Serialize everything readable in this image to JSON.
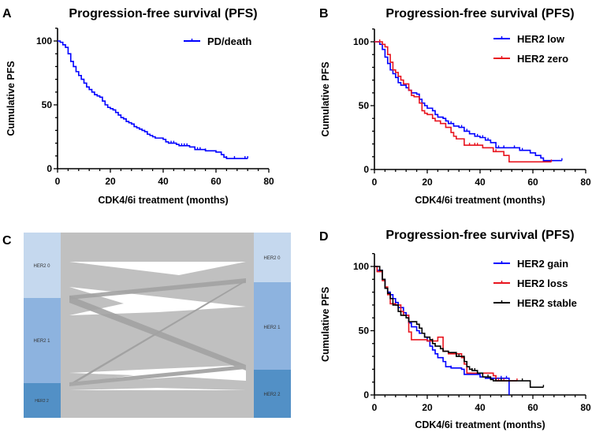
{
  "chart_data": [
    {
      "panel": "A",
      "type": "line",
      "subtype": "kaplan-meier step",
      "title": "Progression-free survival (PFS)",
      "xlabel": "CDK4/6i treatment (months)",
      "ylabel": "Cumulative PFS",
      "xlim": [
        0,
        80
      ],
      "ylim": [
        0,
        110
      ],
      "xticks": [
        "0",
        "20",
        "40",
        "60",
        "80"
      ],
      "yticks": [
        "0",
        "50",
        "100"
      ],
      "legend_position": "top-right",
      "series": [
        {
          "name": "PD/death",
          "color": "#0000ff",
          "steps": [
            [
              0,
              100
            ],
            [
              1,
              99
            ],
            [
              2,
              97
            ],
            [
              3,
              95
            ],
            [
              4,
              90
            ],
            [
              5,
              84
            ],
            [
              6,
              80
            ],
            [
              7,
              76
            ],
            [
              8,
              73
            ],
            [
              9,
              70
            ],
            [
              10,
              67
            ],
            [
              11,
              64
            ],
            [
              12,
              62
            ],
            [
              13,
              60
            ],
            [
              14,
              58
            ],
            [
              15,
              57
            ],
            [
              16,
              56
            ],
            [
              17,
              53
            ],
            [
              18,
              50
            ],
            [
              19,
              48
            ],
            [
              20,
              47
            ],
            [
              21,
              46
            ],
            [
              22,
              44
            ],
            [
              23,
              42
            ],
            [
              24,
              40
            ],
            [
              25,
              39
            ],
            [
              26,
              37
            ],
            [
              27,
              36
            ],
            [
              28,
              35
            ],
            [
              29,
              33
            ],
            [
              30,
              32
            ],
            [
              31,
              31
            ],
            [
              32,
              30
            ],
            [
              33,
              29
            ],
            [
              34,
              27
            ],
            [
              35,
              26
            ],
            [
              36,
              25
            ],
            [
              37,
              24
            ],
            [
              40,
              23
            ],
            [
              41,
              21
            ],
            [
              42,
              20
            ],
            [
              45,
              19
            ],
            [
              46,
              18
            ],
            [
              50,
              17
            ],
            [
              52,
              15
            ],
            [
              56,
              14
            ],
            [
              60,
              13
            ],
            [
              62,
              11
            ],
            [
              63,
              9
            ],
            [
              64,
              8
            ],
            [
              72,
              8
            ]
          ],
          "censored": [
            41,
            43,
            44,
            47,
            48,
            49,
            53,
            54,
            56,
            64,
            67,
            71,
            72
          ]
        }
      ]
    },
    {
      "panel": "B",
      "type": "line",
      "subtype": "kaplan-meier step",
      "title": "Progression-free survival (PFS)",
      "xlabel": "CDK4/6i treatment (months)",
      "ylabel": "Cumulative PFS",
      "xlim": [
        0,
        80
      ],
      "ylim": [
        0,
        110
      ],
      "xticks": [
        "0",
        "20",
        "40",
        "60",
        "80"
      ],
      "yticks": [
        "0",
        "50",
        "100"
      ],
      "legend_position": "top-right",
      "series": [
        {
          "name": "HER2 low",
          "color": "#0000ff",
          "steps": [
            [
              0,
              100
            ],
            [
              2,
              98
            ],
            [
              3,
              94
            ],
            [
              4,
              88
            ],
            [
              5,
              83
            ],
            [
              6,
              78
            ],
            [
              7,
              75
            ],
            [
              8,
              72
            ],
            [
              9,
              68
            ],
            [
              10,
              66
            ],
            [
              12,
              64
            ],
            [
              13,
              62
            ],
            [
              14,
              60
            ],
            [
              16,
              59
            ],
            [
              17,
              55
            ],
            [
              18,
              52
            ],
            [
              19,
              50
            ],
            [
              20,
              48
            ],
            [
              22,
              46
            ],
            [
              23,
              43
            ],
            [
              24,
              41
            ],
            [
              26,
              40
            ],
            [
              27,
              38
            ],
            [
              28,
              36
            ],
            [
              30,
              34
            ],
            [
              32,
              33
            ],
            [
              34,
              30
            ],
            [
              36,
              28
            ],
            [
              38,
              26
            ],
            [
              40,
              25
            ],
            [
              42,
              23
            ],
            [
              44,
              21
            ],
            [
              46,
              17
            ],
            [
              55,
              15
            ],
            [
              59,
              13
            ],
            [
              61,
              11
            ],
            [
              63,
              9
            ],
            [
              64,
              7
            ],
            [
              71,
              7
            ]
          ],
          "censored": [
            27,
            29,
            33,
            35,
            39,
            41,
            43,
            47,
            49,
            53,
            56,
            71
          ]
        },
        {
          "name": "HER2 zero",
          "color": "#e8141e",
          "steps": [
            [
              0,
              100
            ],
            [
              3,
              98
            ],
            [
              4,
              96
            ],
            [
              5,
              90
            ],
            [
              6,
              84
            ],
            [
              7,
              78
            ],
            [
              8,
              76
            ],
            [
              9,
              73
            ],
            [
              10,
              70
            ],
            [
              11,
              67
            ],
            [
              13,
              62
            ],
            [
              14,
              58
            ],
            [
              15,
              57
            ],
            [
              17,
              52
            ],
            [
              18,
              46
            ],
            [
              19,
              44
            ],
            [
              20,
              43
            ],
            [
              22,
              40
            ],
            [
              23,
              38
            ],
            [
              25,
              36
            ],
            [
              27,
              33
            ],
            [
              29,
              29
            ],
            [
              30,
              26
            ],
            [
              31,
              24
            ],
            [
              34,
              19
            ],
            [
              41,
              17
            ],
            [
              45,
              14
            ],
            [
              49,
              11
            ],
            [
              51,
              6
            ],
            [
              67,
              6
            ]
          ],
          "censored": [
            2,
            36,
            38,
            39,
            45,
            46,
            67
          ]
        }
      ]
    },
    {
      "panel": "C",
      "type": "sankey",
      "left_nodes": [
        {
          "label": "HER2 0",
          "color": "#c5d8ee"
        },
        {
          "label": "HER2 1",
          "color": "#8db3df"
        },
        {
          "label": "HER2 2",
          "color": "#5290c6"
        }
      ],
      "right_nodes": [
        {
          "label": "HER2 0",
          "color": "#c5d8ee"
        },
        {
          "label": "HER2 1",
          "color": "#8db3df"
        },
        {
          "label": "HER2 2",
          "color": "#5290c6"
        }
      ],
      "flow_color": "#c0c0c0",
      "highlight_flow_color": "#a0a0a0"
    },
    {
      "panel": "D",
      "type": "line",
      "subtype": "kaplan-meier step",
      "title": "Progression-free survival (PFS)",
      "xlabel": "CDK4/6i treatment (months)",
      "ylabel": "Cumulative PFS",
      "xlim": [
        0,
        80
      ],
      "ylim": [
        0,
        110
      ],
      "xticks": [
        "0",
        "20",
        "40",
        "60",
        "80"
      ],
      "yticks": [
        "0",
        "50",
        "100"
      ],
      "legend_position": "top-right",
      "series": [
        {
          "name": "HER2 gain",
          "color": "#0000ff",
          "steps": [
            [
              0,
              100
            ],
            [
              1,
              97
            ],
            [
              3,
              90
            ],
            [
              4,
              83
            ],
            [
              5,
              80
            ],
            [
              6,
              78
            ],
            [
              7,
              75
            ],
            [
              8,
              72
            ],
            [
              9,
              68
            ],
            [
              11,
              64
            ],
            [
              12,
              62
            ],
            [
              13,
              56
            ],
            [
              14,
              53
            ],
            [
              16,
              50
            ],
            [
              17,
              48
            ],
            [
              19,
              45
            ],
            [
              20,
              42
            ],
            [
              21,
              38
            ],
            [
              22,
              35
            ],
            [
              23,
              32
            ],
            [
              24,
              29
            ],
            [
              26,
              26
            ],
            [
              27,
              22
            ],
            [
              29,
              21
            ],
            [
              33,
              20
            ],
            [
              34,
              16
            ],
            [
              40,
              14
            ],
            [
              42,
              13
            ],
            [
              51,
              13
            ],
            [
              51,
              0
            ]
          ],
          "censored": [
            29,
            48,
            50
          ]
        },
        {
          "name": "HER2 loss",
          "color": "#e8141e",
          "steps": [
            [
              0,
              100
            ],
            [
              1,
              96
            ],
            [
              3,
              89
            ],
            [
              4,
              84
            ],
            [
              5,
              78
            ],
            [
              6,
              71
            ],
            [
              8,
              70
            ],
            [
              10,
              65
            ],
            [
              11,
              62
            ],
            [
              13,
              49
            ],
            [
              14,
              43
            ],
            [
              20,
              42
            ],
            [
              24,
              45
            ],
            [
              26,
              34
            ],
            [
              28,
              32
            ],
            [
              33,
              29
            ],
            [
              34,
              24
            ],
            [
              35,
              17
            ],
            [
              41,
              17
            ],
            [
              45,
              15
            ],
            [
              46,
              11
            ],
            [
              54,
              11
            ]
          ],
          "censored": [
            22,
            47,
            49,
            54
          ]
        },
        {
          "name": "HER2 stable",
          "color": "#000000",
          "steps": [
            [
              0,
              100
            ],
            [
              2,
              97
            ],
            [
              3,
              90
            ],
            [
              4,
              83
            ],
            [
              5,
              79
            ],
            [
              6,
              75
            ],
            [
              7,
              70
            ],
            [
              9,
              65
            ],
            [
              10,
              62
            ],
            [
              12,
              60
            ],
            [
              13,
              57
            ],
            [
              16,
              55
            ],
            [
              17,
              52
            ],
            [
              18,
              48
            ],
            [
              19,
              45
            ],
            [
              21,
              43
            ],
            [
              22,
              40
            ],
            [
              23,
              38
            ],
            [
              25,
              36
            ],
            [
              26,
              34
            ],
            [
              28,
              33
            ],
            [
              31,
              30
            ],
            [
              34,
              26
            ],
            [
              35,
              22
            ],
            [
              36,
              20
            ],
            [
              37,
              19
            ],
            [
              39,
              17
            ],
            [
              41,
              14
            ],
            [
              44,
              12
            ],
            [
              45,
              11
            ],
            [
              59,
              11
            ],
            [
              59,
              6
            ],
            [
              64,
              6
            ]
          ],
          "censored": [
            31,
            32,
            37,
            38,
            39,
            43,
            44,
            46,
            48,
            56,
            64
          ]
        }
      ]
    }
  ]
}
